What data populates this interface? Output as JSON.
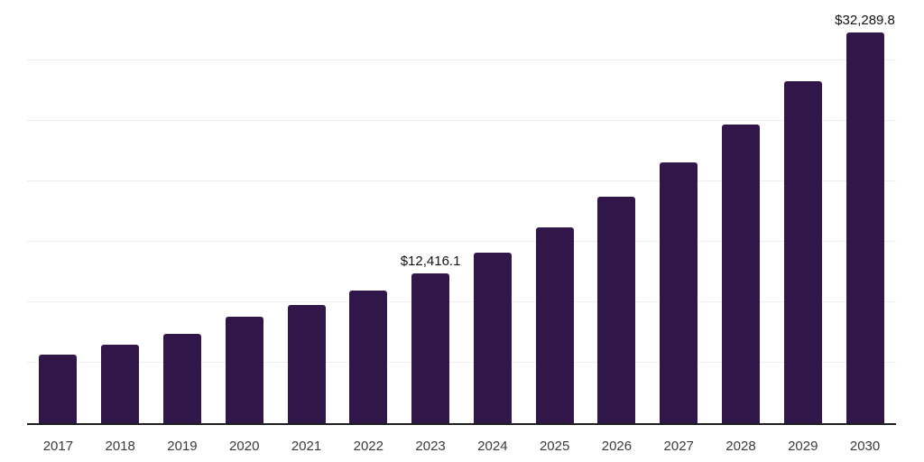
{
  "chart_data": {
    "type": "bar",
    "title": "",
    "xlabel": "",
    "ylabel": "",
    "categories": [
      "2017",
      "2018",
      "2019",
      "2020",
      "2021",
      "2022",
      "2023",
      "2024",
      "2025",
      "2026",
      "2027",
      "2028",
      "2029",
      "2030"
    ],
    "values": [
      5700,
      6500,
      7400,
      8800,
      9800,
      11000,
      12416.1,
      14100,
      16200,
      18700,
      21600,
      24700,
      28300,
      32289.8
    ],
    "point_labels": [
      "",
      "",
      "",
      "",
      "",
      "",
      "$12,416.1",
      "",
      "",
      "",
      "",
      "",
      "",
      "$32,289.8"
    ],
    "ylim": [
      0,
      35000
    ],
    "gridline_step": 5000,
    "grid": true,
    "legend": false,
    "y_axis_labels_visible": false
  },
  "style": {
    "bar_color": "#31164a",
    "axis_color": "#1f1f1f",
    "gridline_color": "#ededed",
    "x_label_color": "#3a3a3a",
    "data_label_color": "#111111",
    "background": "#ffffff"
  }
}
